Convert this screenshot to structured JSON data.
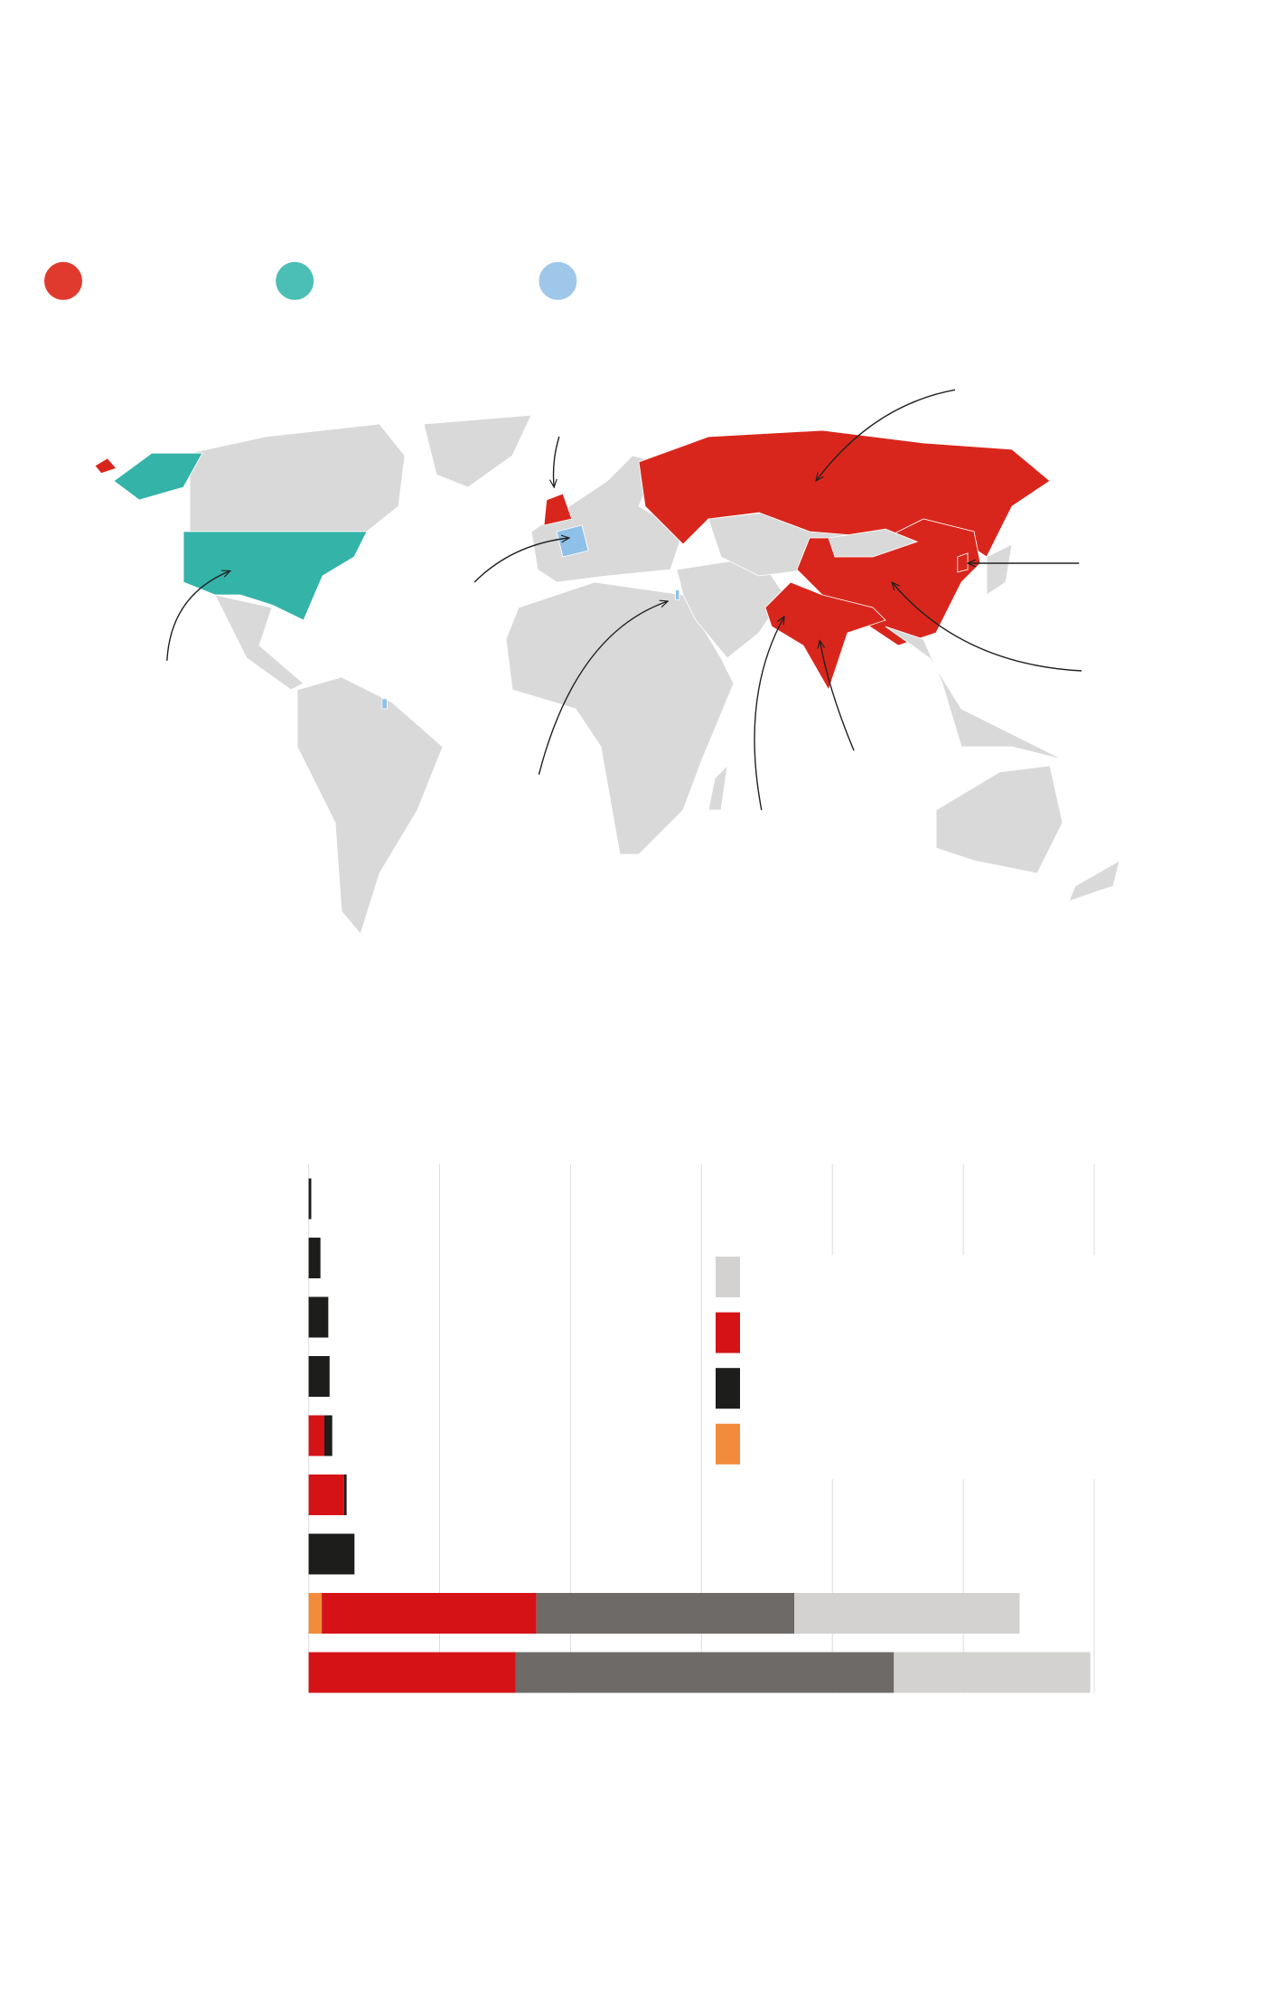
{
  "chart_data": {
    "type": "stacked-bar-horizontal",
    "categories": [
      null,
      null,
      null,
      null,
      null,
      null,
      null,
      null,
      null
    ],
    "series": [
      {
        "color": "#f28c3c",
        "values": [
          0,
          0,
          0,
          0,
          0,
          0,
          0,
          0.1,
          0
        ]
      },
      {
        "color": "#d51317",
        "values": [
          0,
          0,
          0,
          0,
          0.12,
          0.27,
          0,
          1.64,
          1.58
        ]
      },
      {
        "color": "#1d1d1b",
        "values": [
          0.02,
          0.09,
          0.15,
          0.16,
          0.06,
          0.02,
          0.35,
          0,
          0
        ]
      },
      {
        "color": "#6e6a68",
        "values": [
          0,
          0,
          0,
          0,
          0,
          0,
          0,
          1.97,
          2.89
        ]
      },
      {
        "color": "#d3d2d0",
        "values": [
          0,
          0,
          0,
          0,
          0,
          0,
          0,
          1.72,
          1.5
        ]
      }
    ],
    "xlim": [
      0,
      6
    ],
    "xticks": [
      0,
      1,
      2,
      3,
      4,
      5,
      6
    ],
    "grid": true
  }
}
